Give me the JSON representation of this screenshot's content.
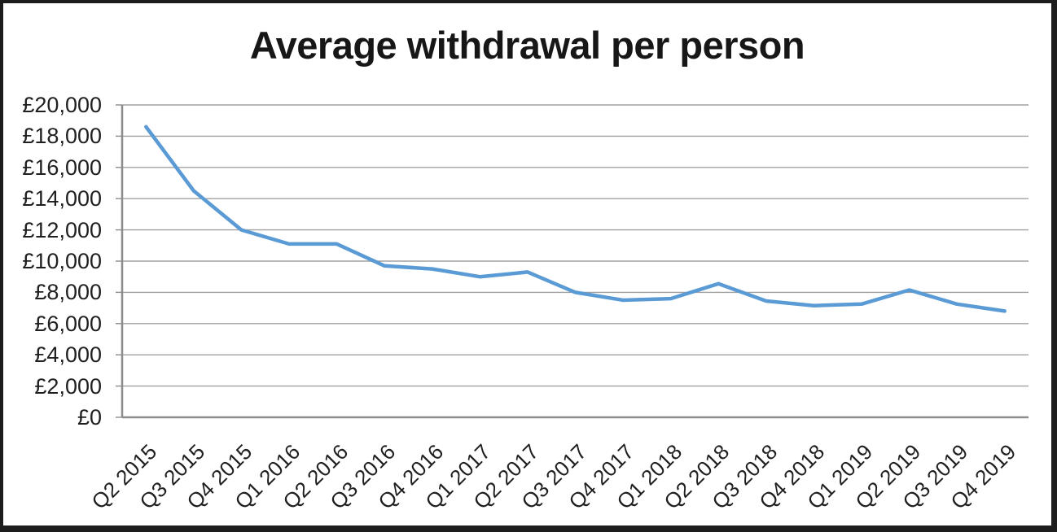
{
  "chart_data": {
    "type": "line",
    "title": "Average withdrawal per person",
    "categories": [
      "Q2 2015",
      "Q3 2015",
      "Q4 2015",
      "Q1 2016",
      "Q2 2016",
      "Q3 2016",
      "Q4 2016",
      "Q1 2017",
      "Q2 2017",
      "Q3 2017",
      "Q4 2017",
      "Q1 2018",
      "Q2 2018",
      "Q3 2018",
      "Q4 2018",
      "Q1 2019",
      "Q2 2019",
      "Q3 2019",
      "Q4 2019"
    ],
    "values": [
      18600,
      14500,
      12000,
      11100,
      11100,
      9700,
      9500,
      9000,
      9300,
      8000,
      7500,
      7600,
      8550,
      7450,
      7150,
      7250,
      8150,
      7250,
      6800
    ],
    "xlabel": "",
    "ylabel": "",
    "ylim": [
      0,
      20000
    ],
    "ytick_step": 2000,
    "ytick_labels": [
      "£0",
      "£2,000",
      "£4,000",
      "£6,000",
      "£8,000",
      "£10,000",
      "£12,000",
      "£14,000",
      "£16,000",
      "£18,000",
      "£20,000"
    ],
    "grid": "horizontal",
    "legend": "none",
    "x_tick_rotation_deg": -45
  },
  "colors": {
    "line": "#5B9BD5",
    "gridline": "#a0a0a0",
    "axis": "#8c8c8c",
    "text": "#1f1f1f",
    "frame": "#1d1d1d",
    "background": "#ffffff"
  }
}
